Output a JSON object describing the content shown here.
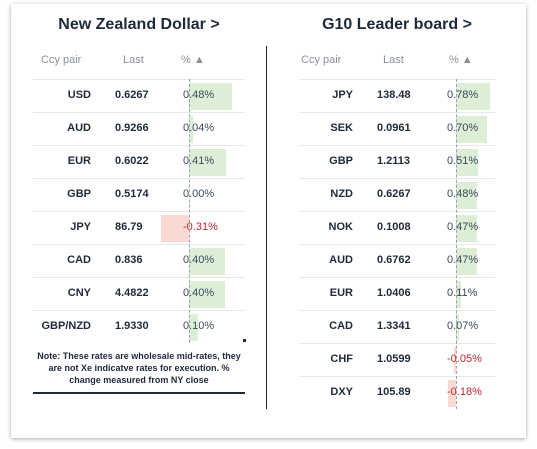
{
  "nzd_panel": {
    "title": "New Zealand Dollar >",
    "headers": {
      "pair": "Ccy pair",
      "last": "Last",
      "pct": "% ▲"
    },
    "rows": [
      {
        "pair": "USD",
        "last": "0.6267",
        "pct": "0.48%",
        "value": 0.48
      },
      {
        "pair": "AUD",
        "last": "0.9266",
        "pct": "0.04%",
        "value": 0.04
      },
      {
        "pair": "EUR",
        "last": "0.6022",
        "pct": "0.41%",
        "value": 0.41
      },
      {
        "pair": "GBP",
        "last": "0.5174",
        "pct": "0.00%",
        "value": 0.0
      },
      {
        "pair": "JPY",
        "last": "86.79",
        "pct": "-0.31%",
        "value": -0.31
      },
      {
        "pair": "CAD",
        "last": "0.836",
        "pct": "0.40%",
        "value": 0.4
      },
      {
        "pair": "CNY",
        "last": "4.4822",
        "pct": "0.40%",
        "value": 0.4
      },
      {
        "pair": "GBP/NZD",
        "last": "1.9330",
        "pct": "0.10%",
        "value": 0.1
      }
    ],
    "note": "Note: These rates are wholesale mid-rates, they are not Xe indicatve rates for execution. % change measured from NY close"
  },
  "g10_panel": {
    "title": "G10 Leader board >",
    "headers": {
      "pair": "Ccy pair",
      "last": "Last",
      "pct": "% ▲"
    },
    "rows": [
      {
        "pair": "JPY",
        "last": "138.48",
        "pct": "0.78%",
        "value": 0.78
      },
      {
        "pair": "SEK",
        "last": "0.0961",
        "pct": "0.70%",
        "value": 0.7
      },
      {
        "pair": "GBP",
        "last": "1.2113",
        "pct": "0.51%",
        "value": 0.51
      },
      {
        "pair": "NZD",
        "last": "0.6267",
        "pct": "0.48%",
        "value": 0.48
      },
      {
        "pair": "NOK",
        "last": "0.1008",
        "pct": "0.47%",
        "value": 0.47
      },
      {
        "pair": "AUD",
        "last": "0.6762",
        "pct": "0.47%",
        "value": 0.47
      },
      {
        "pair": "EUR",
        "last": "1.0406",
        "pct": "0.11%",
        "value": 0.11
      },
      {
        "pair": "CAD",
        "last": "1.3341",
        "pct": "0.07%",
        "value": 0.07
      },
      {
        "pair": "CHF",
        "last": "1.0599",
        "pct": "-0.05%",
        "value": -0.05
      },
      {
        "pair": "DXY",
        "last": "105.89",
        "pct": "-0.18%",
        "value": -0.18
      }
    ]
  },
  "colors": {
    "positive_bar": "#dcefd6",
    "negative_bar": "#fbd9d2",
    "negative_text": "#c0262d"
  }
}
